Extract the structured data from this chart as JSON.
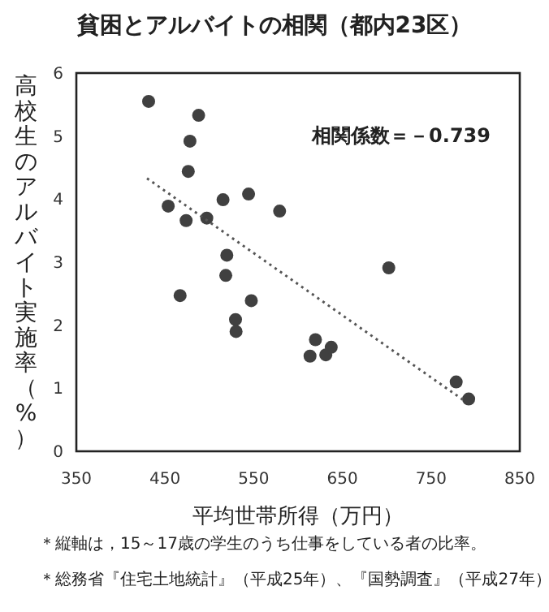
{
  "chart_data": {
    "type": "scatter",
    "title": "貧困とアルバイトの相関（都内23区）",
    "xlabel": "平均世帯所得（万円）",
    "ylabel": "高校生のアルバイト実施率（%）",
    "annotations": [
      "相関係数＝－0.739",
      "＊縦軸は，15～17歳の学生のうち仕事をしている者の比率。",
      "＊総務省『住宅土地統計』（平成25年）、『国勢調査』（平成27年）"
    ],
    "xlim": [
      350,
      850
    ],
    "ylim": [
      0,
      6
    ],
    "xticks": [
      350,
      450,
      550,
      650,
      750,
      850
    ],
    "yticks": [
      0,
      1,
      2,
      3,
      4,
      5,
      6
    ],
    "series": [
      {
        "marker": "circle",
        "color": "#404040",
        "x": [
          431.5,
          487.9,
          478.1,
          476.2,
          453.6,
          473.8,
          497.1,
          515.4,
          544.2,
          579.2,
          519.7,
          518.5,
          467.0,
          547.3,
          529.5,
          530.1,
          702.3,
          619.6,
          613.5,
          631.3,
          637.4,
          778.3,
          792.4
        ],
        "values": [
          5.55,
          5.33,
          4.92,
          4.44,
          3.89,
          3.66,
          3.7,
          3.99,
          4.08,
          3.81,
          3.11,
          2.79,
          2.47,
          2.39,
          2.09,
          1.9,
          2.91,
          1.77,
          1.51,
          1.53,
          1.65,
          1.1,
          0.83
        ]
      },
      {
        "type": "line",
        "marker": "none",
        "color": "#555555",
        "line_style": "dotted",
        "x": [
          429.7,
          788.7
        ],
        "values": [
          4.33,
          0.79
        ]
      }
    ]
  }
}
